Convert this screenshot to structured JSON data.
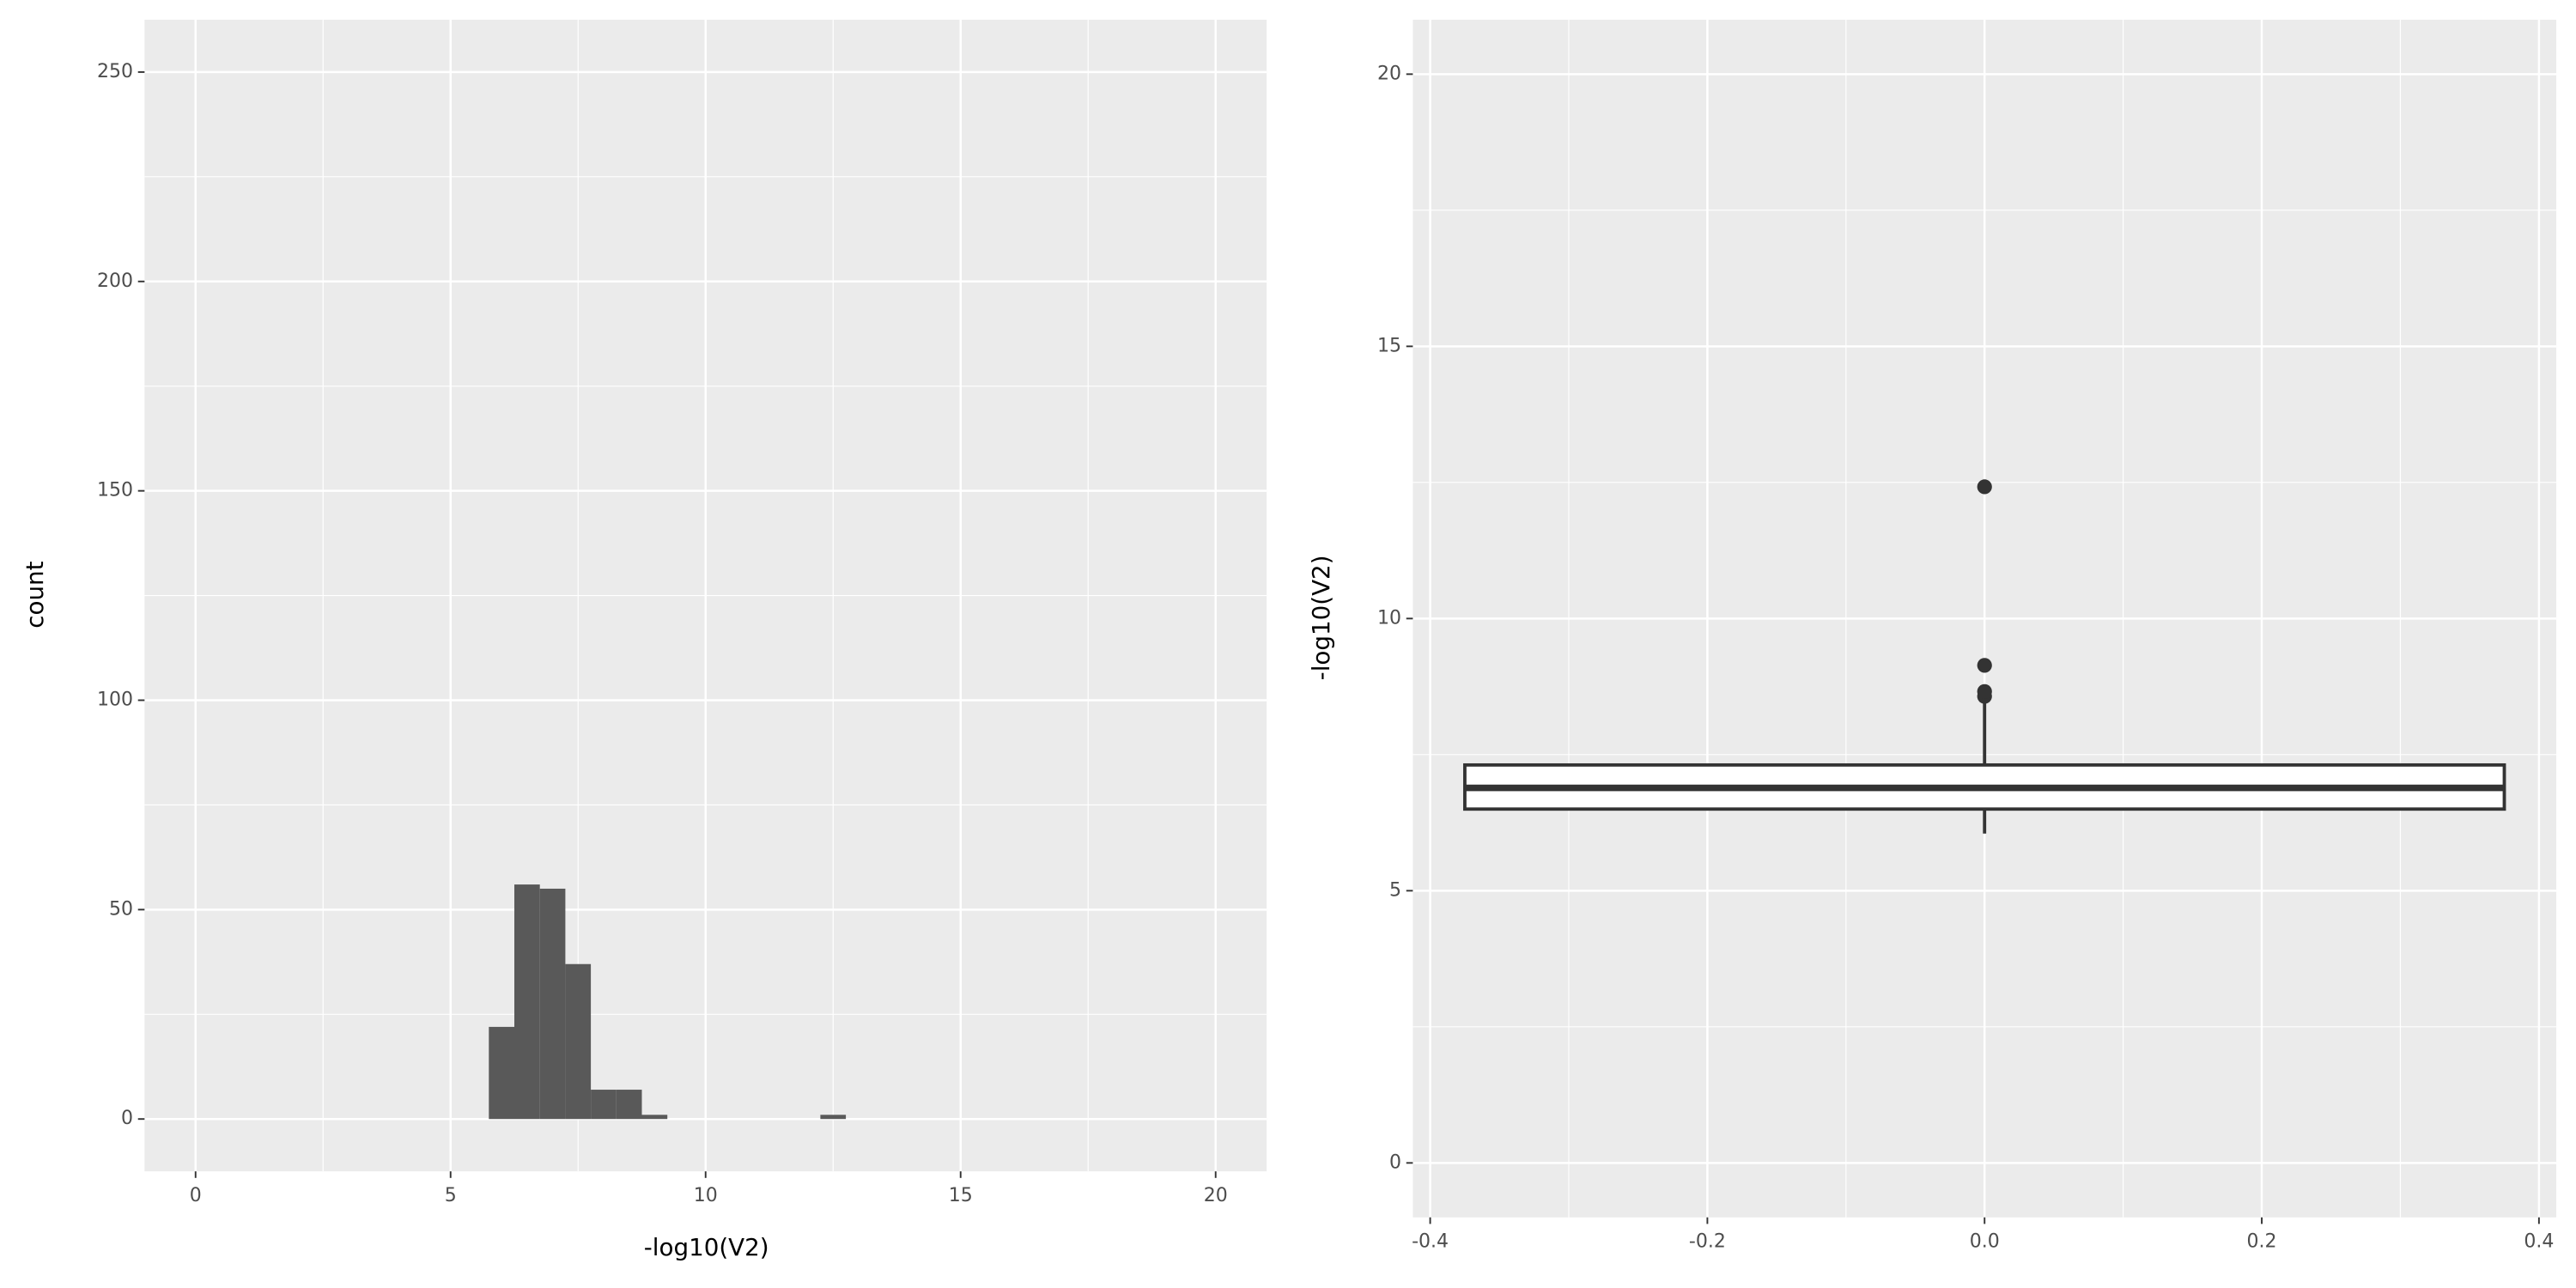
{
  "chart_data": [
    {
      "type": "histogram",
      "xlabel": "-log10(V2)",
      "ylabel": "count",
      "bins": [
        5.75,
        6.25,
        6.75,
        7.25,
        7.75,
        8.25,
        8.75,
        9.25,
        9.75,
        10.25,
        10.75,
        11.25,
        11.75,
        12.25,
        12.75
      ],
      "counts": [
        22,
        56,
        55,
        37,
        7,
        7,
        1,
        0,
        0,
        0,
        0,
        0,
        0,
        1
      ],
      "color": "#595959",
      "xlim": [
        -1,
        21
      ],
      "ylim": [
        -12.5,
        262.5
      ],
      "xticks": [
        0,
        5,
        10,
        15,
        20
      ],
      "yticks": [
        0,
        50,
        100,
        150,
        200,
        250
      ],
      "xminor": [
        2.5,
        7.5,
        12.5,
        17.5
      ],
      "yminor": [
        25,
        75,
        125,
        175,
        225
      ],
      "grid": true
    },
    {
      "type": "box",
      "ylabel": "-log10(V2)",
      "xlim": [
        -0.4125,
        0.4125
      ],
      "ylim": [
        -1,
        21
      ],
      "xticks": [
        -0.4,
        -0.2,
        {
          "value": 0,
          "label": "0.0"
        },
        0.2,
        0.4
      ],
      "yticks": [
        0,
        5,
        10,
        15,
        20
      ],
      "xminor": [
        -0.3,
        -0.1,
        0.1,
        0.3
      ],
      "yminor": [
        2.5,
        7.5,
        12.5,
        17.5
      ],
      "grid": true,
      "box": {
        "x": 0,
        "width": 0.75,
        "whisker_low": 6.05,
        "q1": 6.5,
        "median": 6.89,
        "q3": 7.31,
        "whisker_high": 8.51,
        "outliers": [
          8.57,
          8.66,
          9.14,
          12.42
        ]
      },
      "color": "#333333"
    }
  ]
}
